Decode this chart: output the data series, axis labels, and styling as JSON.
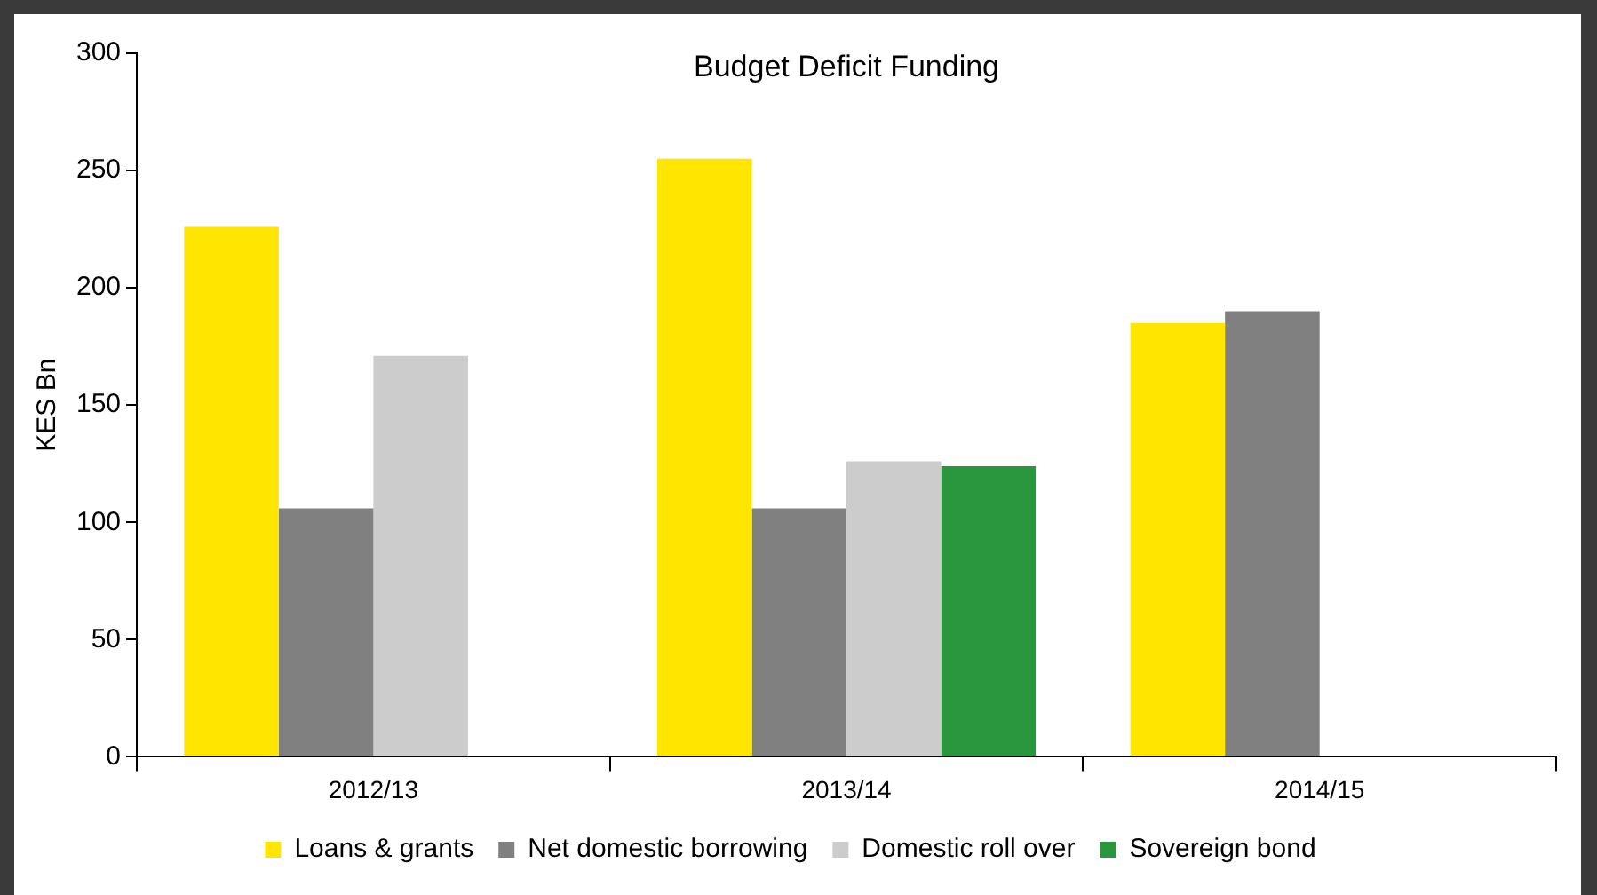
{
  "chart_data": {
    "type": "bar",
    "title": "Budget Deficit Funding",
    "ylabel": "KES Bn",
    "categories": [
      "2012/13",
      "2013/14",
      "2014/15"
    ],
    "series": [
      {
        "name": "Loans & grants",
        "color": "#ffe600",
        "values": [
          226,
          255,
          185
        ]
      },
      {
        "name": "Net domestic borrowing",
        "color": "#808080",
        "values": [
          106,
          106,
          190
        ]
      },
      {
        "name": "Domestic roll over",
        "color": "#cccccc",
        "values": [
          171,
          126,
          null
        ]
      },
      {
        "name": "Sovereign bond",
        "color": "#2a963e",
        "values": [
          null,
          124,
          null
        ]
      }
    ],
    "ylim": [
      0,
      300
    ],
    "yticks": [
      0,
      50,
      100,
      150,
      200,
      250,
      300
    ],
    "grid": false,
    "legend": "bottom"
  }
}
